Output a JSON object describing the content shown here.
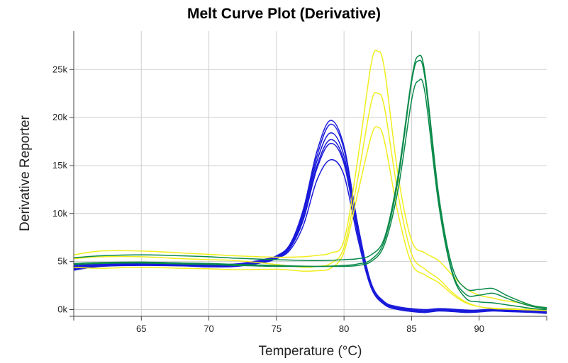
{
  "chart_data": {
    "type": "line",
    "title": "Melt Curve Plot (Derivative)",
    "xlabel": "Temperature (°C)",
    "ylabel": "Derivative Reporter",
    "xlim": [
      60,
      95
    ],
    "ylim": [
      -700,
      29000
    ],
    "x_ticks": [
      65,
      70,
      75,
      80,
      85,
      90
    ],
    "x_tick_labels": [
      "65",
      "70",
      "75",
      "80",
      "85",
      "90"
    ],
    "y_ticks": [
      0,
      5000,
      10000,
      15000,
      20000,
      25000
    ],
    "y_tick_labels": [
      "0k",
      "5k",
      "10k",
      "15k",
      "20k",
      "25k"
    ],
    "grid": true,
    "legend": "none",
    "colors": {
      "blue": "#1a1adb",
      "yellow": "#f0ee1e",
      "green": "#0a8a4a"
    },
    "series": [
      {
        "color": "blue",
        "x": [
          60,
          62,
          65,
          68,
          70,
          72,
          74,
          75,
          76,
          77,
          78,
          79,
          80,
          81,
          82,
          83,
          84,
          85,
          86,
          87,
          88,
          89,
          90,
          91,
          92,
          93,
          94,
          95
        ],
        "y": [
          4600,
          4800,
          4900,
          4850,
          4700,
          4750,
          5200,
          5600,
          6800,
          10500,
          16500,
          19700,
          17000,
          9000,
          2800,
          800,
          300,
          100,
          0,
          100,
          50,
          -50,
          -100,
          0,
          100,
          50,
          0,
          -100
        ]
      },
      {
        "color": "blue",
        "x": [
          60,
          62,
          65,
          68,
          70,
          72,
          74,
          75,
          76,
          77,
          78,
          79,
          80,
          81,
          82,
          83,
          84,
          85,
          86,
          87,
          88,
          89,
          90,
          91,
          92,
          93,
          94,
          95
        ],
        "y": [
          4500,
          4700,
          4800,
          4750,
          4650,
          4700,
          5100,
          5500,
          6700,
          10200,
          16000,
          19300,
          16700,
          8800,
          2700,
          700,
          200,
          0,
          -100,
          50,
          0,
          -100,
          -50,
          50,
          0,
          -50,
          -100,
          -200
        ]
      },
      {
        "color": "blue",
        "x": [
          60,
          62,
          65,
          68,
          70,
          72,
          74,
          75,
          76,
          77,
          78,
          79,
          80,
          81,
          82,
          83,
          84,
          85,
          86,
          87,
          88,
          89,
          90,
          91,
          92,
          93,
          94,
          95
        ],
        "y": [
          4400,
          4650,
          4750,
          4700,
          4600,
          4650,
          5050,
          5450,
          6600,
          9900,
          15500,
          18400,
          16000,
          8500,
          2600,
          650,
          150,
          -50,
          -150,
          0,
          -50,
          -150,
          -100,
          0,
          -50,
          -100,
          -150,
          -250
        ]
      },
      {
        "color": "blue",
        "x": [
          60,
          62,
          65,
          68,
          70,
          72,
          74,
          75,
          76,
          77,
          78,
          79,
          80,
          81,
          82,
          83,
          84,
          85,
          86,
          87,
          88,
          89,
          90,
          91,
          92,
          93,
          94,
          95
        ],
        "y": [
          4300,
          4600,
          4700,
          4650,
          4550,
          4600,
          5000,
          5400,
          6500,
          9600,
          15000,
          17700,
          15500,
          8200,
          2500,
          600,
          100,
          -100,
          -200,
          -50,
          -100,
          -200,
          -150,
          -50,
          -100,
          -150,
          -200,
          -300
        ]
      },
      {
        "color": "blue",
        "x": [
          60,
          62,
          65,
          68,
          70,
          72,
          74,
          75,
          76,
          77,
          78,
          79,
          80,
          81,
          82,
          83,
          84,
          85,
          86,
          87,
          88,
          89,
          90,
          91,
          92,
          93,
          94,
          95
        ],
        "y": [
          4200,
          4550,
          4650,
          4600,
          4500,
          4550,
          4950,
          5350,
          6400,
          9400,
          14700,
          17300,
          15200,
          8000,
          2400,
          550,
          50,
          -150,
          -250,
          -100,
          -150,
          -250,
          -200,
          -100,
          -150,
          -200,
          -250,
          -350
        ]
      },
      {
        "color": "blue",
        "x": [
          60,
          62,
          65,
          68,
          70,
          72,
          74,
          75,
          76,
          77,
          78,
          79,
          80,
          81,
          82,
          83,
          84,
          85,
          86,
          87,
          88,
          89,
          90,
          91,
          92,
          93,
          94,
          95
        ],
        "y": [
          4100,
          4500,
          4600,
          4550,
          4450,
          4500,
          4900,
          5300,
          6200,
          8800,
          13500,
          15600,
          14000,
          7500,
          2300,
          500,
          0,
          -200,
          -300,
          -150,
          -200,
          -300,
          -250,
          -150,
          -200,
          -250,
          -300,
          -400
        ]
      },
      {
        "color": "yellow",
        "x": [
          60,
          62,
          65,
          68,
          70,
          72,
          75,
          77,
          78,
          79,
          80,
          81,
          82,
          82.5,
          83,
          84,
          85,
          86,
          87,
          88,
          89,
          90,
          91,
          92,
          93,
          94,
          95
        ],
        "y": [
          5700,
          6100,
          6100,
          5900,
          5750,
          5600,
          5450,
          5500,
          5650,
          5900,
          7200,
          15500,
          25500,
          26900,
          25000,
          14000,
          7200,
          5900,
          5100,
          3600,
          2200,
          1500,
          1200,
          900,
          700,
          400,
          200
        ]
      },
      {
        "color": "yellow",
        "x": [
          60,
          62,
          65,
          68,
          70,
          72,
          75,
          77,
          78,
          79,
          80,
          81,
          82,
          82.5,
          83,
          84,
          85,
          86,
          87,
          88,
          89,
          90,
          91,
          92,
          93,
          94,
          95
        ],
        "y": [
          5300,
          5500,
          5500,
          5300,
          5200,
          5100,
          4700,
          4400,
          4500,
          4800,
          6500,
          13500,
          21500,
          22500,
          21000,
          12000,
          5800,
          4200,
          3200,
          1800,
          800,
          300,
          100,
          50,
          0,
          -50,
          -100
        ]
      },
      {
        "color": "yellow",
        "x": [
          60,
          62,
          65,
          68,
          70,
          72,
          75,
          77,
          78,
          79,
          80,
          81,
          82,
          82.5,
          83,
          84,
          85,
          86,
          87,
          88,
          89,
          90,
          91,
          92,
          93,
          94,
          95
        ],
        "y": [
          4400,
          4300,
          4400,
          4300,
          4250,
          4150,
          4200,
          4000,
          4050,
          4300,
          6000,
          12000,
          18000,
          19000,
          17500,
          10000,
          4800,
          3600,
          2800,
          1600,
          700,
          300,
          150,
          100,
          50,
          0,
          -50
        ]
      },
      {
        "color": "green",
        "x": [
          60,
          62,
          65,
          68,
          70,
          72,
          75,
          78,
          80,
          81,
          82,
          83,
          84,
          85,
          85.5,
          86,
          87,
          88,
          89,
          90,
          91,
          92,
          93,
          94,
          95
        ],
        "y": [
          5400,
          5600,
          5700,
          5600,
          5500,
          5350,
          5200,
          5100,
          5200,
          5300,
          5700,
          7500,
          14000,
          24000,
          26400,
          24500,
          12000,
          4500,
          2200,
          2100,
          2200,
          1500,
          900,
          400,
          200
        ]
      },
      {
        "color": "green",
        "x": [
          60,
          62,
          65,
          68,
          70,
          72,
          75,
          78,
          80,
          81,
          82,
          83,
          84,
          85,
          85.5,
          86,
          87,
          88,
          89,
          90,
          91,
          92,
          93,
          94,
          95
        ],
        "y": [
          4800,
          4900,
          4950,
          4850,
          4800,
          4700,
          4600,
          4500,
          4600,
          4750,
          5200,
          7200,
          13500,
          23700,
          25900,
          24000,
          11500,
          4000,
          1600,
          1500,
          1700,
          1200,
          700,
          300,
          100
        ]
      },
      {
        "color": "green",
        "x": [
          60,
          62,
          65,
          68,
          70,
          72,
          75,
          78,
          80,
          81,
          82,
          83,
          84,
          85,
          85.5,
          86,
          87,
          88,
          89,
          90,
          91,
          92,
          93,
          94,
          95
        ],
        "y": [
          4700,
          4800,
          4850,
          4750,
          4700,
          4600,
          4500,
          4500,
          4500,
          4600,
          5000,
          6800,
          12500,
          21800,
          23800,
          22500,
          11000,
          3800,
          1200,
          800,
          700,
          500,
          300,
          100,
          0
        ]
      }
    ]
  }
}
